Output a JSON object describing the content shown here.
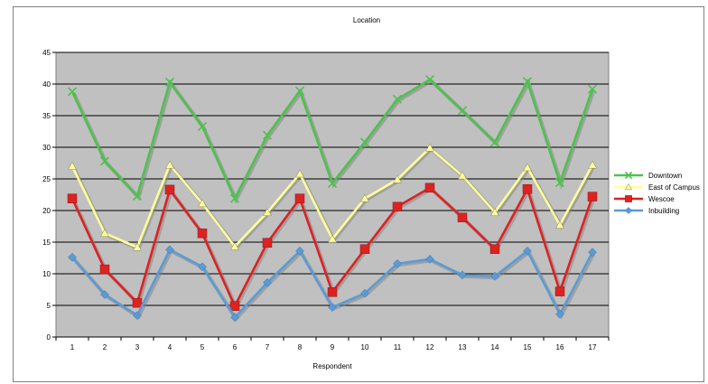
{
  "chart_data": {
    "type": "line",
    "title": "Location",
    "xlabel": "Respondent",
    "ylabel": "",
    "x": [
      1,
      2,
      3,
      4,
      5,
      6,
      7,
      8,
      9,
      10,
      11,
      12,
      13,
      14,
      15,
      16,
      17
    ],
    "ylim": [
      0,
      45
    ],
    "yticks": [
      0,
      5,
      10,
      15,
      20,
      25,
      30,
      35,
      40,
      45
    ],
    "grid": true,
    "legend_position": "right",
    "plot_background": "#c0c0c0",
    "series": [
      {
        "name": "Downtown",
        "color": "#4cc24c",
        "marker": "x",
        "values": [
          38.8,
          27.8,
          22.3,
          40.3,
          33.3,
          21.9,
          31.9,
          38.9,
          24.3,
          30.8,
          37.6,
          40.7,
          35.8,
          30.8,
          40.4,
          24.4,
          39.2
        ]
      },
      {
        "name": "East of Campus",
        "color": "#ffff99",
        "marker": "triangle",
        "values": [
          27.0,
          16.4,
          14.2,
          27.2,
          21.1,
          14.3,
          19.7,
          25.8,
          15.5,
          21.9,
          24.9,
          29.9,
          25.5,
          19.7,
          26.8,
          17.7,
          27.2
        ]
      },
      {
        "name": "Wescoe",
        "color": "#dd2222",
        "marker": "square",
        "values": [
          21.9,
          10.7,
          5.4,
          23.3,
          16.4,
          4.9,
          14.9,
          21.9,
          7.1,
          13.9,
          20.6,
          23.6,
          18.9,
          13.9,
          23.4,
          7.2,
          22.2
        ]
      },
      {
        "name": "Inbuilding",
        "color": "#5b9bd5",
        "marker": "diamond",
        "values": [
          12.6,
          6.7,
          3.4,
          13.8,
          11.1,
          3.1,
          8.6,
          13.6,
          4.7,
          6.9,
          11.6,
          12.3,
          9.8,
          9.6,
          13.6,
          3.6,
          13.4
        ]
      }
    ]
  }
}
